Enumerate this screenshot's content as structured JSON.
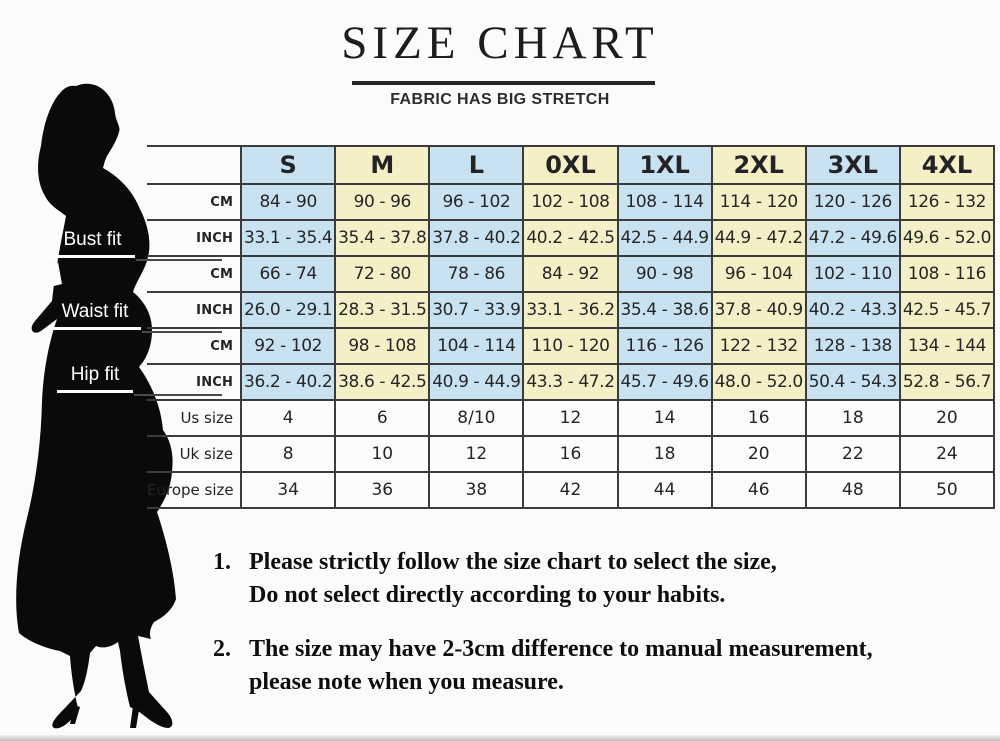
{
  "header": {
    "title": "SIZE CHART",
    "subtitle": "FABRIC HAS BIG STRETCH"
  },
  "colors": {
    "column_blue": "#c9e2f2",
    "column_yellow": "#f4efc6",
    "table_border": "#3b3b3b"
  },
  "table": {
    "sizes": [
      "S",
      "M",
      "L",
      "0XL",
      "1XL",
      "2XL",
      "3XL",
      "4XL"
    ],
    "measurements": [
      {
        "group": "Bust fit",
        "unit": "CM",
        "values": [
          "84 - 90",
          "90 - 96",
          "96 - 102",
          "102 - 108",
          "108 - 114",
          "114 - 120",
          "120 - 126",
          "126 - 132"
        ]
      },
      {
        "group": "Bust fit",
        "unit": "INCH",
        "values": [
          "33.1 - 35.4",
          "35.4 - 37.8",
          "37.8 - 40.2",
          "40.2 - 42.5",
          "42.5 - 44.9",
          "44.9 - 47.2",
          "47.2 - 49.6",
          "49.6 - 52.0"
        ]
      },
      {
        "group": "Waist fit",
        "unit": "CM",
        "values": [
          "66 - 74",
          "72 - 80",
          "78 - 86",
          "84 - 92",
          "90 - 98",
          "96 - 104",
          "102 - 110",
          "108 - 116"
        ]
      },
      {
        "group": "Waist fit",
        "unit": "INCH",
        "values": [
          "26.0 - 29.1",
          "28.3 - 31.5",
          "30.7 - 33.9",
          "33.1 - 36.2",
          "35.4 - 38.6",
          "37.8 - 40.9",
          "40.2 - 43.3",
          "42.5 - 45.7"
        ]
      },
      {
        "group": "Hip fit",
        "unit": "CM",
        "values": [
          "92 - 102",
          "98 - 108",
          "104 - 114",
          "110 - 120",
          "116 - 126",
          "122 - 132",
          "128 - 138",
          "134 - 144"
        ]
      },
      {
        "group": "Hip fit",
        "unit": "INCH",
        "values": [
          "36.2 - 40.2",
          "38.6 - 42.5",
          "40.9 - 44.9",
          "43.3 - 47.2",
          "45.7 - 49.6",
          "48.0 - 52.0",
          "50.4 - 54.3",
          "52.8 - 56.7"
        ]
      }
    ],
    "size_rows": [
      {
        "label": "Us size",
        "values": [
          "4",
          "6",
          "8/10",
          "12",
          "14",
          "16",
          "18",
          "20"
        ]
      },
      {
        "label": "Uk size",
        "values": [
          "8",
          "10",
          "12",
          "16",
          "18",
          "20",
          "22",
          "24"
        ]
      },
      {
        "label": "Europe size",
        "values": [
          "34",
          "36",
          "38",
          "42",
          "44",
          "46",
          "48",
          "50"
        ]
      }
    ]
  },
  "figure": {
    "labels": [
      "Bust fit",
      "Waist fit",
      "Hip fit"
    ]
  },
  "notes": [
    {
      "num": "1.",
      "lines": [
        "Please strictly follow the size chart to select the size,",
        "Do not select directly according to your habits."
      ]
    },
    {
      "num": "2.",
      "lines": [
        "The size may have 2-3cm difference to manual measurement,",
        "please note when you measure."
      ]
    }
  ]
}
